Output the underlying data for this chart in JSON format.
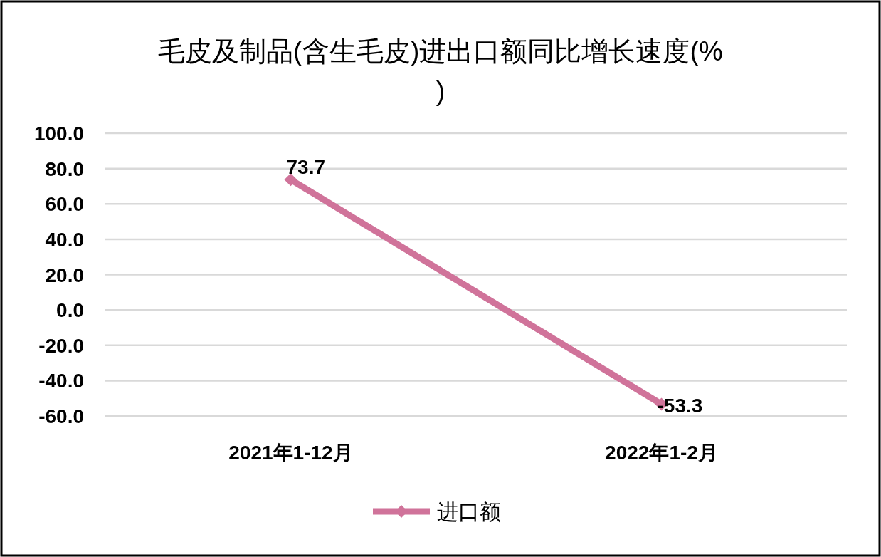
{
  "chart_data": {
    "type": "line",
    "title": "毛皮及制品(含生毛皮)进出口额同比增长速度(%)",
    "categories": [
      "2021年1-12月",
      "2022年1-2月"
    ],
    "series": [
      {
        "name": "进口额",
        "color": "#d0739a",
        "values": [
          73.7,
          -53.3
        ]
      }
    ],
    "ylim": [
      -60,
      100
    ],
    "yticks": [
      {
        "value": -60,
        "label": "-60.0"
      },
      {
        "value": -40,
        "label": "-40.0"
      },
      {
        "value": -20,
        "label": "-20.0"
      },
      {
        "value": 0,
        "label": "0.0"
      },
      {
        "value": 20,
        "label": "20.0"
      },
      {
        "value": 40,
        "label": "40.0"
      },
      {
        "value": 60,
        "label": "60.0"
      },
      {
        "value": 80,
        "label": "80.0"
      },
      {
        "value": 100,
        "label": "100.0"
      }
    ],
    "grid": "y",
    "legend": "bottom",
    "marker": "diamond",
    "line_style": "solid",
    "data_labels": true
  }
}
